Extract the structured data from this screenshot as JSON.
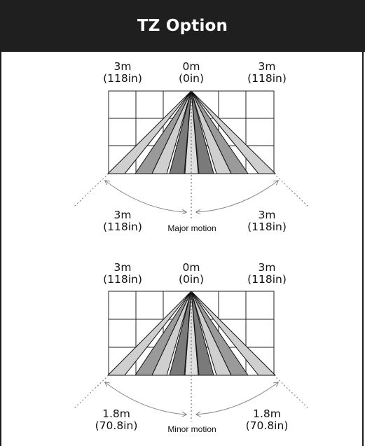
{
  "header": {
    "title": "TZ Option"
  },
  "panels": [
    {
      "top_labels": [
        {
          "line1": "3m",
          "line2": "(118in)"
        },
        {
          "line1": "0m",
          "line2": "(0in)"
        },
        {
          "line1": "3m",
          "line2": "(118in)"
        }
      ],
      "bottom_labels": [
        {
          "line1": "3m",
          "line2": "(118in)"
        },
        {
          "line1": "3m",
          "line2": "(118in)"
        }
      ],
      "caption": "Major motion"
    },
    {
      "top_labels": [
        {
          "line1": "3m",
          "line2": "(118in)"
        },
        {
          "line1": "0m",
          "line2": "(0in)"
        },
        {
          "line1": "3m",
          "line2": "(118in)"
        }
      ],
      "bottom_labels": [
        {
          "line1": "1.8m",
          "line2": "(70.8in)"
        },
        {
          "line1": "1.8m",
          "line2": "(70.8in)"
        }
      ],
      "caption": "Minor motion"
    }
  ],
  "colors": {
    "header_bg": "#1f1f1f",
    "zone_light": "#cfcfcf",
    "zone_mid": "#9a9a9a",
    "zone_dark": "#6f6f6f"
  }
}
